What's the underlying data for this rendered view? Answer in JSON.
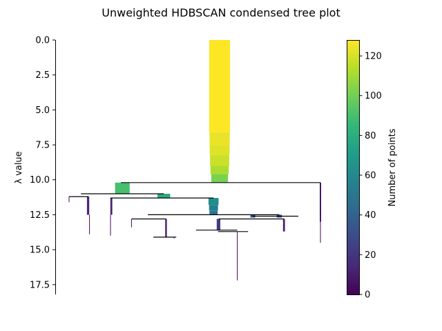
{
  "chart_data": {
    "type": "condensed-tree",
    "title": "Unweighted HDBSCAN condensed tree plot",
    "ylabel": "λ value",
    "y_axis_inverted": true,
    "ylim": [
      0,
      18.2
    ],
    "yticks": [
      {
        "value": 0.0,
        "label": "0.0"
      },
      {
        "value": 2.5,
        "label": "2.5"
      },
      {
        "value": 5.0,
        "label": "5.0"
      },
      {
        "value": 7.5,
        "label": "7.5"
      },
      {
        "value": 10.0,
        "label": "10.0"
      },
      {
        "value": 12.5,
        "label": "12.5"
      },
      {
        "value": 15.0,
        "label": "15.0"
      },
      {
        "value": 17.5,
        "label": "17.5"
      }
    ],
    "x_axis_visible": false,
    "colormap": "viridis",
    "colorbar": {
      "label": "Number of points",
      "range": [
        0,
        128
      ],
      "ticks": [
        {
          "value": 0,
          "label": "0"
        },
        {
          "value": 20,
          "label": "20"
        },
        {
          "value": 40,
          "label": "40"
        },
        {
          "value": 60,
          "label": "60"
        },
        {
          "value": 80,
          "label": "80"
        },
        {
          "value": 100,
          "label": "100"
        },
        {
          "value": 120,
          "label": "120"
        }
      ]
    },
    "branches": [
      {
        "name": "root",
        "center": 0.595,
        "lambda_start": 0.0,
        "lambda_end": 10.2,
        "profile": [
          [
            0,
            6.6,
            128
          ],
          [
            6.6,
            7.5,
            124
          ],
          [
            7.5,
            8.2,
            122
          ],
          [
            8.2,
            9.0,
            118
          ],
          [
            9.0,
            9.6,
            112
          ],
          [
            9.6,
            10.2,
            102
          ]
        ]
      },
      {
        "name": "c1",
        "center": 0.243,
        "lambda_start": 10.2,
        "lambda_end": 11.0,
        "profile": [
          [
            10.2,
            11.0,
            90
          ]
        ]
      },
      {
        "name": "c2",
        "center": 0.393,
        "lambda_start": 11.0,
        "lambda_end": 11.3,
        "profile": [
          [
            11.0,
            11.3,
            78
          ]
        ]
      },
      {
        "name": "c3",
        "center": 0.573,
        "lambda_start": 11.3,
        "lambda_end": 12.5,
        "profile": [
          [
            11.3,
            11.8,
            62
          ],
          [
            11.8,
            12.2,
            55
          ],
          [
            12.2,
            12.5,
            50
          ]
        ]
      },
      {
        "name": "c4",
        "center": 0.591,
        "lambda_start": 12.8,
        "lambda_end": 13.6,
        "profile": [
          [
            12.8,
            13.6,
            22
          ]
        ]
      },
      {
        "name": "c5",
        "center": 0.715,
        "lambda_start": 12.5,
        "lambda_end": 12.7,
        "profile": [
          [
            12.5,
            12.7,
            30
          ]
        ]
      },
      {
        "name": "c6",
        "center": 0.811,
        "lambda_start": 12.5,
        "lambda_end": 12.7,
        "profile": [
          [
            12.5,
            12.7,
            32
          ]
        ]
      },
      {
        "name": "c7",
        "center": 0.119,
        "lambda_start": 11.2,
        "lambda_end": 12.5,
        "profile": [
          [
            11.2,
            12.5,
            14
          ]
        ]
      },
      {
        "name": "c8",
        "center": 0.203,
        "lambda_start": 11.3,
        "lambda_end": 12.5,
        "profile": [
          [
            11.3,
            12.5,
            12
          ]
        ]
      },
      {
        "name": "c9",
        "center": 0.828,
        "lambda_start": 12.8,
        "lambda_end": 13.7,
        "profile": [
          [
            12.8,
            13.7,
            12
          ]
        ]
      },
      {
        "name": "c10",
        "center": 0.401,
        "lambda_start": 12.8,
        "lambda_end": 14.1,
        "profile": [
          [
            12.8,
            14.1,
            10
          ]
        ]
      },
      {
        "name": "c11",
        "center": 0.96,
        "lambda_start": 10.2,
        "lambda_end": 13.0,
        "profile": [
          [
            10.2,
            13.0,
            8
          ]
        ]
      }
    ],
    "links": [
      {
        "parent": "root",
        "lambda": 10.2,
        "from": 0.238,
        "to": 0.96
      },
      {
        "parent": "c1",
        "lambda": 11.0,
        "from": 0.093,
        "to": 0.393
      },
      {
        "parent": "c1a",
        "lambda": 11.2,
        "from": 0.05,
        "to": 0.12
      },
      {
        "parent": "c2",
        "lambda": 11.3,
        "from": 0.2,
        "to": 0.573
      },
      {
        "parent": "c3",
        "lambda": 12.5,
        "from": 0.335,
        "to": 0.811
      },
      {
        "parent": "c5",
        "lambda": 12.6,
        "from": 0.715,
        "to": 0.88
      },
      {
        "parent": "c5b",
        "lambda": 12.8,
        "from": 0.276,
        "to": 0.401
      },
      {
        "parent": "c6",
        "lambda": 12.8,
        "from": 0.591,
        "to": 0.828
      },
      {
        "parent": "c4",
        "lambda": 13.6,
        "from": 0.51,
        "to": 0.659
      },
      {
        "parent": "c4b",
        "lambda": 13.7,
        "from": 0.589,
        "to": 0.698
      },
      {
        "parent": "c10",
        "lambda": 14.1,
        "from": 0.355,
        "to": 0.438
      }
    ],
    "leaves": [
      {
        "center": 0.05,
        "lambda_start": 11.2,
        "lambda_end": 11.6
      },
      {
        "center": 0.124,
        "lambda_start": 12.5,
        "lambda_end": 13.9
      },
      {
        "center": 0.2,
        "lambda_start": 12.5,
        "lambda_end": 14.0
      },
      {
        "center": 0.276,
        "lambda_start": 12.8,
        "lambda_end": 13.4
      },
      {
        "center": 0.43,
        "lambda_start": 14.1,
        "lambda_end": 14.2
      },
      {
        "center": 0.659,
        "lambda_start": 13.7,
        "lambda_end": 17.2
      },
      {
        "center": 0.96,
        "lambda_start": 13.0,
        "lambda_end": 14.5
      }
    ]
  }
}
